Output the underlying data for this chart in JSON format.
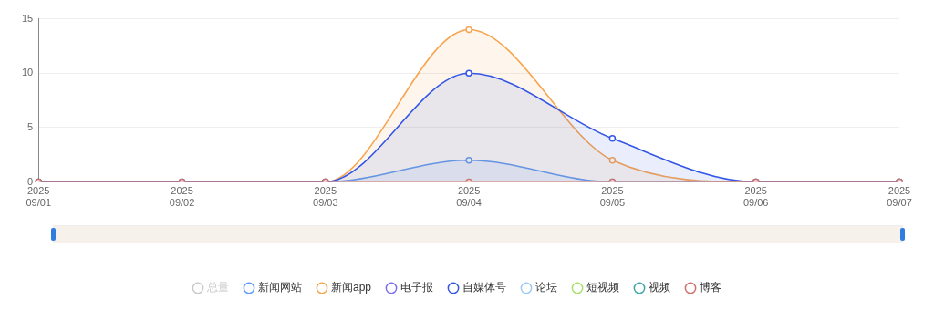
{
  "chart_data": {
    "type": "line",
    "categories": [
      "2025\n09/01",
      "2025\n09/02",
      "2025\n09/03",
      "2025\n09/04",
      "2025\n09/05",
      "2025\n09/06",
      "2025\n09/07"
    ],
    "series": [
      {
        "name": "总量",
        "color": "#c8c8c8",
        "values": [
          null,
          null,
          null,
          null,
          null,
          null,
          null
        ]
      },
      {
        "name": "新闻网站",
        "color": "#5b9bf5",
        "type": "area",
        "values": [
          0,
          0,
          0,
          2,
          0,
          0,
          0
        ]
      },
      {
        "name": "新闻app",
        "color": "#f7a551",
        "type": "area",
        "values": [
          0,
          0,
          0,
          14,
          2,
          0,
          0
        ]
      },
      {
        "name": "电子报",
        "color": "#7b6cf0",
        "values": [
          null,
          null,
          null,
          null,
          null,
          null,
          null
        ]
      },
      {
        "color": "#ef6462",
        "values": [
          null,
          null,
          null,
          null,
          null,
          null,
          null
        ]
      },
      {
        "color": "#4cc86a",
        "values": [
          null,
          null,
          null,
          null,
          null,
          null,
          null
        ]
      },
      {
        "name": "自媒体号",
        "color": "#3456e6",
        "type": "area",
        "values": [
          0,
          0,
          0,
          10,
          4,
          0,
          0
        ]
      },
      {
        "name": "论坛",
        "color": "#9cc8f5",
        "values": [
          null,
          null,
          null,
          null,
          null,
          null,
          null
        ]
      },
      {
        "name": "短视频",
        "color": "#a4e068",
        "values": [
          null,
          null,
          null,
          null,
          null,
          null,
          null
        ]
      },
      {
        "name": "视频",
        "color": "#3aa6a8",
        "values": [
          null,
          null,
          null,
          null,
          null,
          null,
          null
        ]
      },
      {
        "name": "博客",
        "color": "#cf6f6a",
        "values": [
          0,
          0,
          0,
          0,
          0,
          0,
          0
        ]
      }
    ],
    "ylim": [
      0,
      15
    ],
    "yticks": [
      0,
      5,
      10,
      15
    ],
    "grid": "y",
    "legend": "bottom",
    "marker": "circle",
    "line_style": "solid"
  }
}
